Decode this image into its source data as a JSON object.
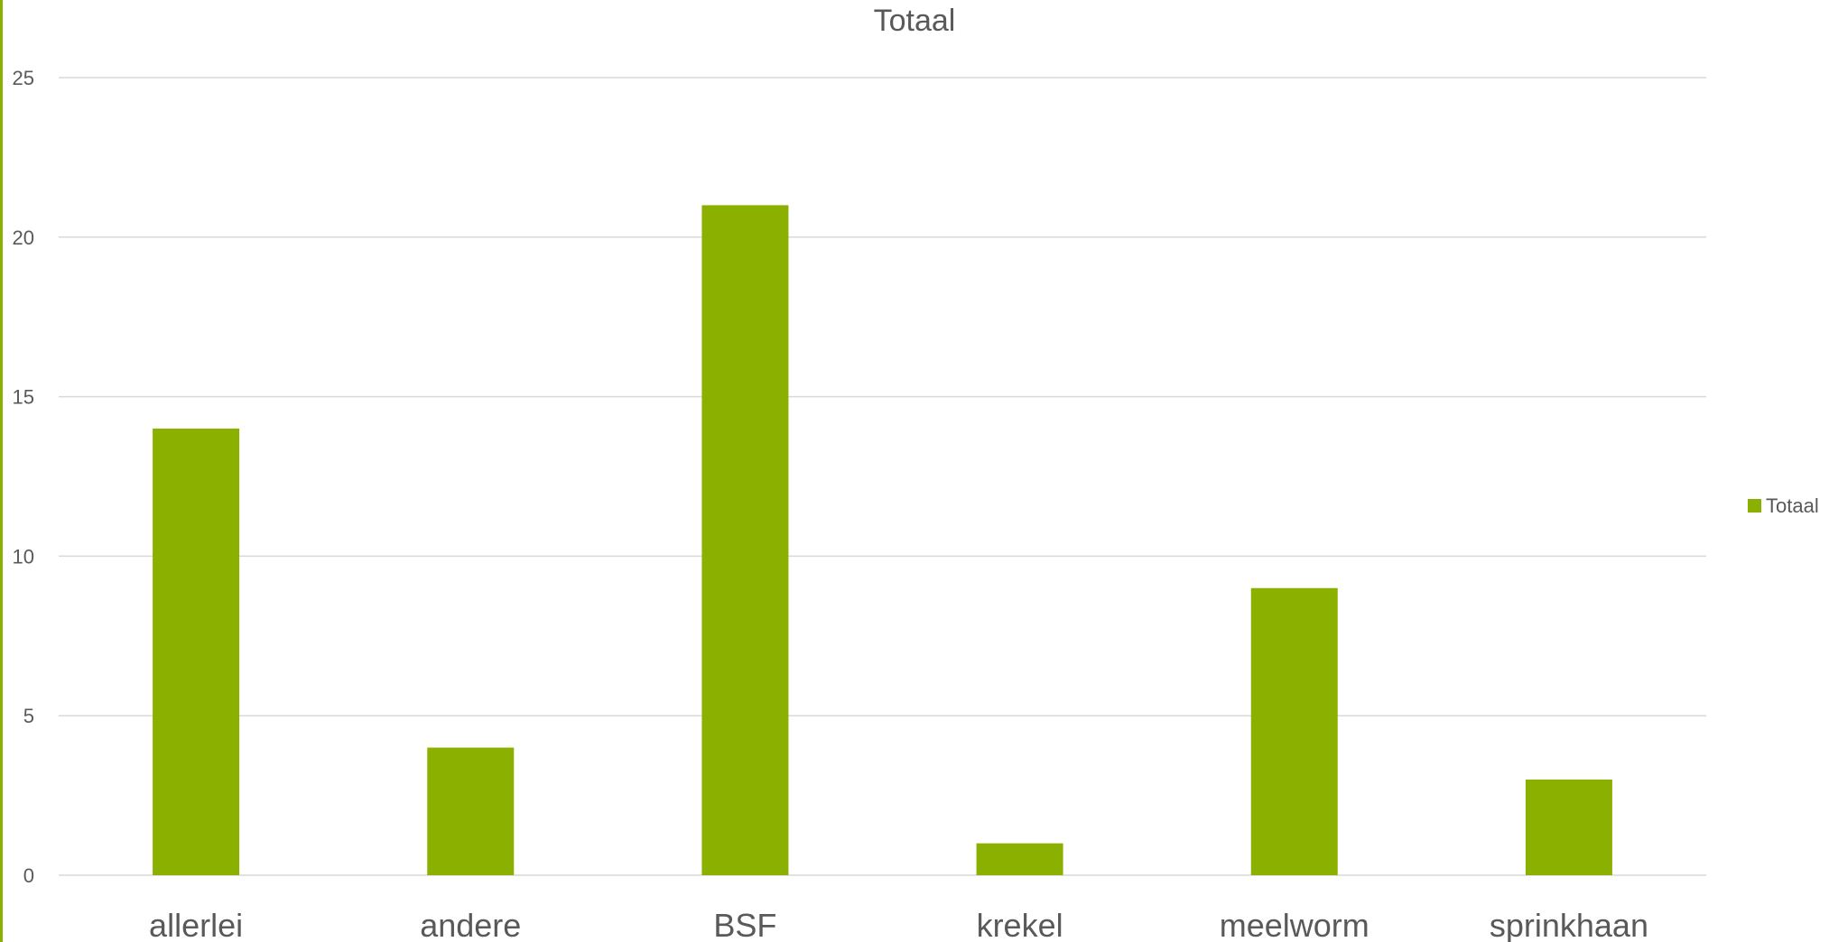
{
  "chart_data": {
    "type": "bar",
    "title": "Totaal",
    "categories": [
      "allerlei",
      "andere",
      "BSF",
      "krekel",
      "meelworm",
      "sprinkhaan"
    ],
    "series": [
      {
        "name": "Totaal",
        "values": [
          14,
          4,
          21,
          1,
          9,
          3
        ]
      }
    ],
    "ylim": [
      0,
      25
    ],
    "yticks": [
      0,
      5,
      10,
      15,
      20,
      25
    ],
    "xlabel": "",
    "ylabel": "",
    "grid": true,
    "legend": "right",
    "colors": {
      "bar": "#8cb000",
      "grid": "#d9d9d9",
      "text": "#595959"
    }
  }
}
